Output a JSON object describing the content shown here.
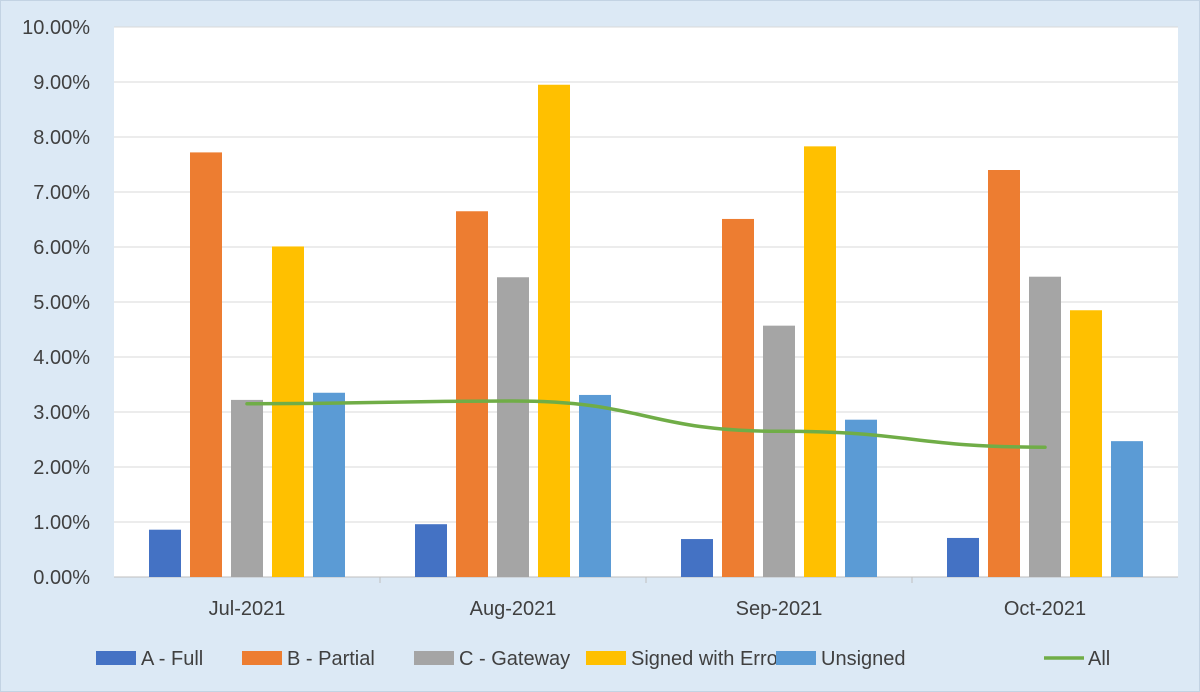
{
  "chart_data": {
    "type": "bar",
    "categories": [
      "Jul-2021",
      "Aug-2021",
      "Sep-2021",
      "Oct-2021"
    ],
    "series": [
      {
        "name": "A - Full",
        "type": "bar",
        "color": "#4472c4",
        "values": [
          0.86,
          0.96,
          0.69,
          0.71
        ]
      },
      {
        "name": "B - Partial",
        "type": "bar",
        "color": "#ed7d31",
        "values": [
          7.72,
          6.65,
          6.51,
          7.4
        ]
      },
      {
        "name": "C - Gateway",
        "type": "bar",
        "color": "#a5a5a5",
        "values": [
          3.22,
          5.45,
          4.57,
          5.46
        ]
      },
      {
        "name": "Signed with Errors",
        "type": "bar",
        "color": "#ffc000",
        "values": [
          6.01,
          8.95,
          7.83,
          4.85
        ]
      },
      {
        "name": "Unsigned",
        "type": "bar",
        "color": "#5b9bd5",
        "values": [
          3.35,
          3.31,
          2.86,
          2.47
        ]
      },
      {
        "name": "All",
        "type": "line",
        "color": "#70ad47",
        "values": [
          3.15,
          3.2,
          2.65,
          2.36
        ]
      }
    ],
    "ylim": [
      0,
      10
    ],
    "yticks": [
      "0.00%",
      "1.00%",
      "2.00%",
      "3.00%",
      "4.00%",
      "5.00%",
      "6.00%",
      "7.00%",
      "8.00%",
      "9.00%",
      "10.00%"
    ],
    "ytick_values": [
      0,
      1,
      2,
      3,
      4,
      5,
      6,
      7,
      8,
      9,
      10
    ],
    "grid": true,
    "legend_position": "bottom"
  }
}
